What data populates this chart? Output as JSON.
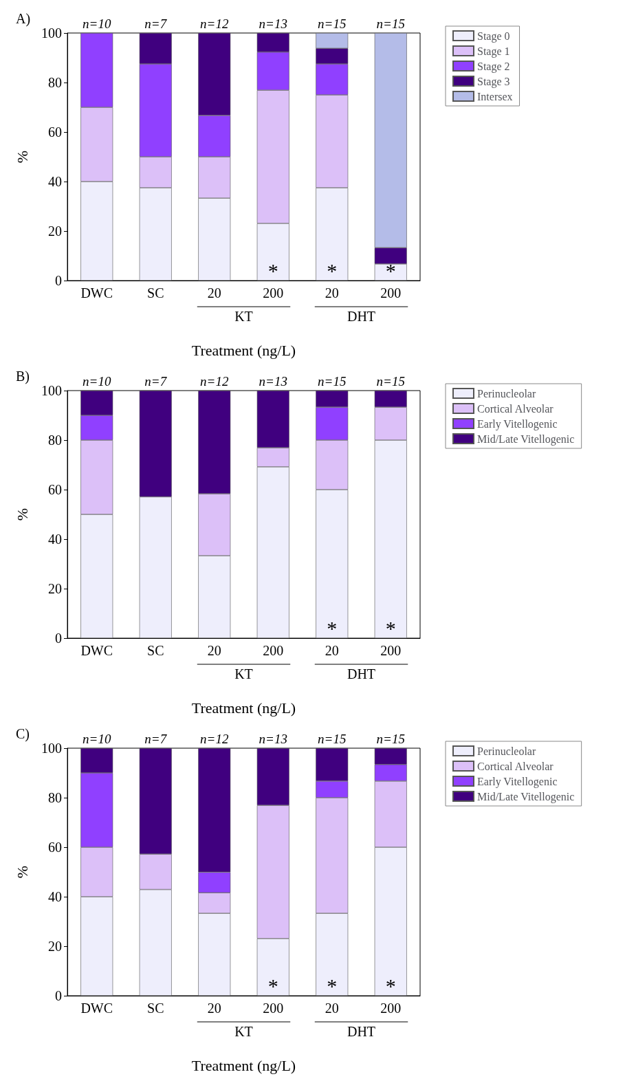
{
  "chart_data": [
    {
      "type": "bar",
      "stacked": true,
      "title": "A)",
      "xlabel": "Treatment (ng/L)",
      "ylabel": "%",
      "categories": [
        "DWC",
        "SC",
        "20",
        "200",
        "20",
        "200"
      ],
      "ylim": [
        0,
        100
      ],
      "yticks": [
        0,
        20,
        40,
        60,
        80,
        100
      ],
      "grid": false,
      "legend": "top right",
      "annotations": [
        "n=10",
        "n=7",
        "n=12",
        "n=13",
        "n=15",
        "n=15",
        "KT",
        "DHT"
      ],
      "series": [
        {
          "name": "Stage 0",
          "color": "#eeeefc",
          "values": [
            40,
            37.5,
            33.3,
            23.1,
            37.5,
            6.7
          ],
          "value_labels": [
            null,
            null,
            null,
            "*",
            "*",
            "*"
          ]
        },
        {
          "name": "Stage 1",
          "color": "#dcc0f8",
          "values": [
            30,
            12.5,
            16.7,
            53.8,
            37.5,
            0
          ]
        },
        {
          "name": "Stage 2",
          "color": "#9040ff",
          "values": [
            30,
            37.5,
            16.7,
            15.4,
            12.5,
            0
          ]
        },
        {
          "name": "Stage 3",
          "color": "#40007f",
          "values": [
            0,
            12.5,
            33.3,
            7.7,
            6.3,
            6.6
          ]
        },
        {
          "name": "Intersex",
          "color": "#b4bce8",
          "values": [
            0,
            0,
            0,
            0,
            6.2,
            86.7
          ]
        }
      ]
    },
    {
      "type": "bar",
      "stacked": true,
      "title": "B)",
      "xlabel": "Treatment (ng/L)",
      "ylabel": "%",
      "categories": [
        "DWC",
        "SC",
        "20",
        "200",
        "20",
        "200"
      ],
      "ylim": [
        0,
        100
      ],
      "yticks": [
        0,
        20,
        40,
        60,
        80,
        100
      ],
      "grid": false,
      "legend": "top right",
      "annotations": [
        "n=10",
        "n=7",
        "n=12",
        "n=13",
        "n=15",
        "n=15",
        "KT",
        "DHT"
      ],
      "series": [
        {
          "name": "Perinucleolar",
          "color": "#eeeefc",
          "values": [
            50,
            57.1,
            33.3,
            69.2,
            60,
            80
          ],
          "value_labels": [
            null,
            null,
            null,
            null,
            "*",
            "*"
          ]
        },
        {
          "name": "Cortical Alveolar",
          "color": "#dcc0f8",
          "values": [
            30,
            0,
            25,
            7.7,
            20,
            13.3
          ]
        },
        {
          "name": "Early Vitellogenic",
          "color": "#9040ff",
          "values": [
            10,
            0,
            0,
            0,
            13.3,
            0
          ]
        },
        {
          "name": "Mid/Late Vitellogenic",
          "color": "#40007f",
          "values": [
            10,
            42.9,
            41.7,
            23.1,
            6.7,
            6.7
          ]
        }
      ]
    },
    {
      "type": "bar",
      "stacked": true,
      "title": "C)",
      "xlabel": "Treatment (ng/L)",
      "ylabel": "%",
      "categories": [
        "DWC",
        "SC",
        "20",
        "200",
        "20",
        "200"
      ],
      "ylim": [
        0,
        100
      ],
      "yticks": [
        0,
        20,
        40,
        60,
        80,
        100
      ],
      "grid": false,
      "legend": "top right",
      "annotations": [
        "n=10",
        "n=7",
        "n=12",
        "n=13",
        "n=15",
        "n=15",
        "KT",
        "DHT"
      ],
      "series": [
        {
          "name": "Perinucleolar",
          "color": "#eeeefc",
          "values": [
            40,
            42.9,
            33.3,
            23.1,
            33.3,
            60
          ],
          "value_labels": [
            null,
            null,
            null,
            "*",
            "*",
            "*"
          ]
        },
        {
          "name": "Cortical Alveolar",
          "color": "#dcc0f8",
          "values": [
            20,
            14.3,
            8.3,
            53.8,
            46.7,
            26.7
          ]
        },
        {
          "name": "Early Vitellogenic",
          "color": "#9040ff",
          "values": [
            30,
            0,
            8.3,
            0,
            6.7,
            6.7
          ]
        },
        {
          "name": "Mid/Late Vitellogenic",
          "color": "#40007f",
          "values": [
            10,
            42.8,
            50.1,
            23.1,
            13.3,
            6.6
          ]
        }
      ]
    }
  ]
}
